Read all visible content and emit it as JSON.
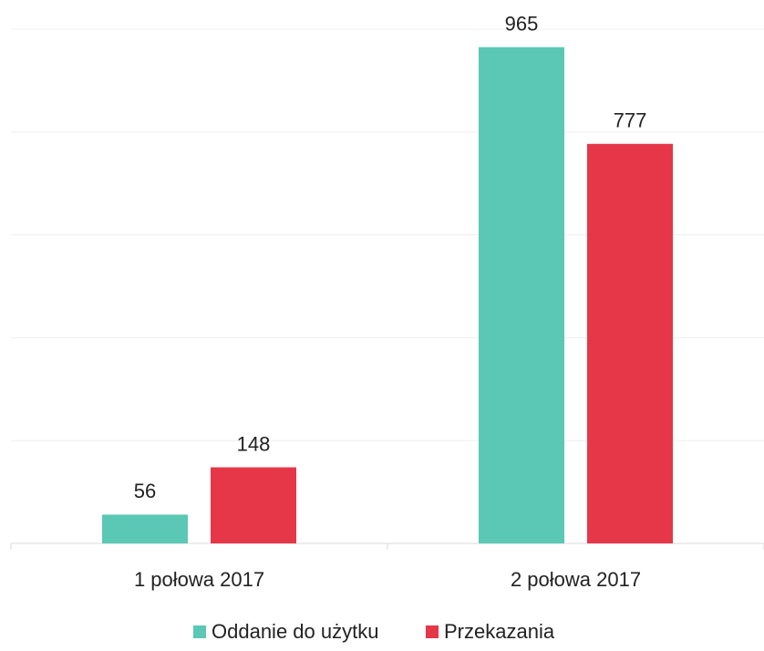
{
  "chart_data": {
    "type": "bar",
    "categories": [
      "1 połowa 2017",
      "2 połowa 2017"
    ],
    "series": [
      {
        "name": "Oddanie do użytku",
        "color": "#5ac8b4",
        "values": [
          56,
          965
        ]
      },
      {
        "name": "Przekazania",
        "color": "#e63748",
        "values": [
          148,
          777
        ]
      }
    ],
    "ylim": [
      0,
      1000
    ],
    "yticks": [
      0,
      200,
      400,
      600,
      800,
      1000
    ],
    "grid": true,
    "legend": "bottom"
  }
}
